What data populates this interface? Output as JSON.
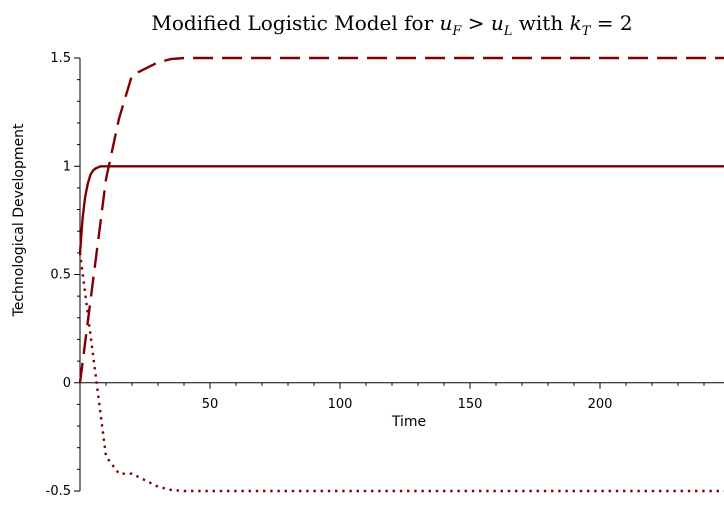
{
  "chart_data": {
    "type": "line",
    "title": {
      "prefix": "Modified Logistic Model for ",
      "uF_base": "u",
      "uF_sub": "F",
      "gt": " > ",
      "uL_base": "u",
      "uL_sub": "L",
      "with": " with ",
      "k_base": "k",
      "k_sub": "T",
      "eq": " = 2"
    },
    "xlabel": "Time",
    "ylabel": "Technological Development",
    "xlim": [
      0,
      250
    ],
    "ylim": [
      -0.5,
      1.5
    ],
    "x_ticks": [
      50,
      100,
      150,
      200
    ],
    "x_tick_labels": [
      "50",
      "100",
      "150",
      "200"
    ],
    "y_ticks": [
      -0.5,
      0,
      0.5,
      1,
      1.5
    ],
    "y_tick_labels": [
      "-0.5",
      "0",
      "0.5",
      "1",
      "1.5"
    ],
    "grid": false,
    "color": "#800000",
    "series": [
      {
        "style": "solid",
        "x": [
          0,
          1,
          2,
          3,
          4,
          5,
          6,
          8,
          10,
          15,
          20,
          50,
          100,
          150,
          200,
          250
        ],
        "y": [
          0.6,
          0.76,
          0.86,
          0.92,
          0.96,
          0.98,
          0.99,
          1.0,
          1.0,
          1.0,
          1.0,
          1.0,
          1.0,
          1.0,
          1.0,
          1.0
        ]
      },
      {
        "style": "dashed",
        "x": [
          0,
          5,
          10,
          15,
          20,
          25,
          30,
          35,
          40,
          50,
          100,
          150,
          200,
          250
        ],
        "y": [
          0.0,
          0.47,
          0.94,
          1.22,
          1.42,
          1.45,
          1.48,
          1.495,
          1.5,
          1.5,
          1.5,
          1.5,
          1.5,
          1.5
        ]
      },
      {
        "style": "dotted",
        "x": [
          0,
          5,
          10,
          15,
          20,
          25,
          30,
          35,
          40,
          50,
          100,
          150,
          200,
          250
        ],
        "y": [
          0.6,
          0.13,
          -0.34,
          -0.42,
          -0.42,
          -0.45,
          -0.48,
          -0.495,
          -0.5,
          -0.5,
          -0.5,
          -0.5,
          -0.5,
          -0.5
        ]
      }
    ]
  }
}
